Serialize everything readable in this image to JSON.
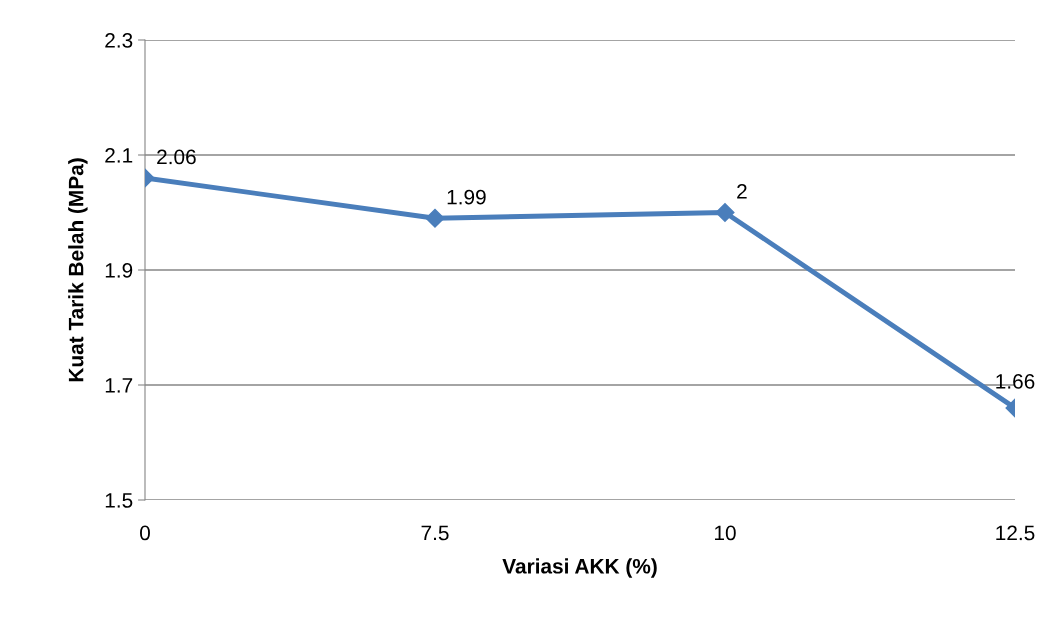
{
  "chart_data": {
    "type": "line",
    "xlabel": "Variasi AKK (%)",
    "ylabel": "Kuat Tarik Belah (MPa)",
    "categories": [
      "0",
      "7.5",
      "10",
      "12.5"
    ],
    "series": [
      {
        "color": "#4a7ebb",
        "values": [
          2.06,
          1.99,
          2.0,
          1.66
        ],
        "value_labels": [
          "2.06",
          "1.99",
          "2",
          "1.66"
        ]
      }
    ],
    "ylim": [
      1.5,
      2.3
    ],
    "yticks": [
      {
        "value": 1.5,
        "label": "1.5"
      },
      {
        "value": 1.7,
        "label": "1.7"
      },
      {
        "value": 1.9,
        "label": "1.9"
      },
      {
        "value": 2.1,
        "label": "2.1"
      },
      {
        "value": 2.3,
        "label": "2.3"
      }
    ],
    "grid": "y",
    "marker": "diamond",
    "line_style": "solid"
  }
}
